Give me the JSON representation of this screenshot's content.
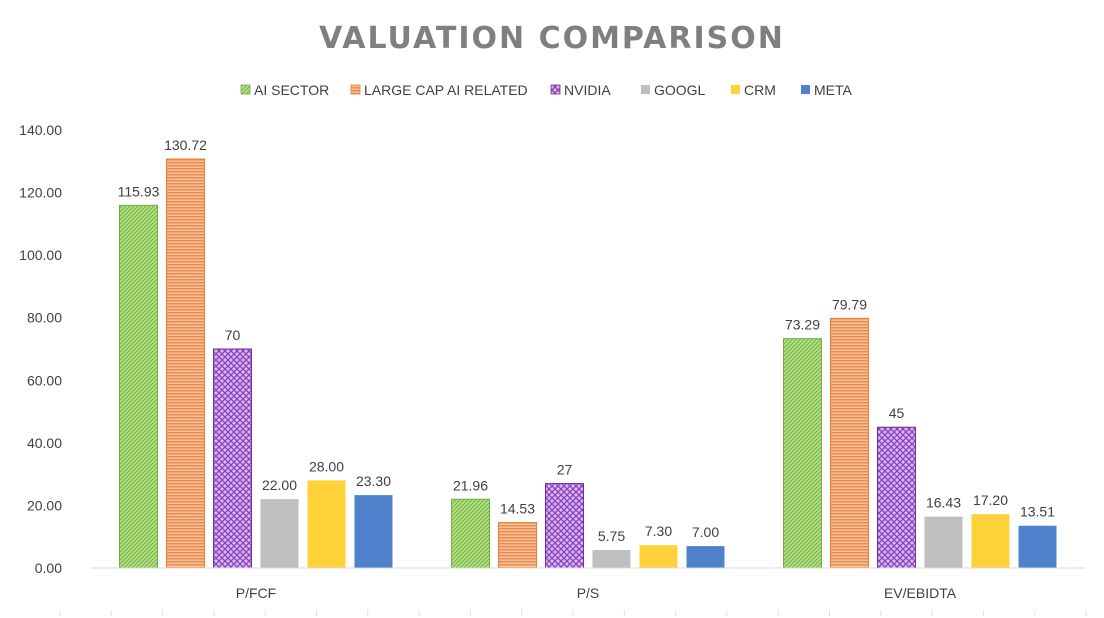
{
  "chart_data": {
    "type": "bar",
    "title": "VALUATION COMPARISON",
    "categories": [
      "P/FCF",
      "P/S",
      "EV/EBIDTA"
    ],
    "series": [
      {
        "name": "AI SECTOR",
        "color": "#92d050",
        "values": [
          115.93,
          21.96,
          73.29
        ],
        "labels": [
          "115.93",
          "21.96",
          "73.29"
        ],
        "pattern": "hatch-green"
      },
      {
        "name": "LARGE CAP AI RELATED",
        "color": "#f4a070",
        "values": [
          130.72,
          14.53,
          79.79
        ],
        "labels": [
          "130.72",
          "14.53",
          "79.79"
        ],
        "pattern": "hlines-orange"
      },
      {
        "name": "NVIDIA",
        "color": "#9b59c8",
        "values": [
          70,
          27,
          45
        ],
        "labels": [
          "70",
          "27",
          "45"
        ],
        "pattern": "cross-purple"
      },
      {
        "name": "GOOGL",
        "color": "#bfbfbf",
        "values": [
          22.0,
          5.75,
          16.43
        ],
        "labels": [
          "22.00",
          "5.75",
          "16.43"
        ],
        "pattern": "solid-gray"
      },
      {
        "name": "CRM",
        "color": "#ffd23a",
        "values": [
          28.0,
          7.3,
          17.2
        ],
        "labels": [
          "28.00",
          "7.30",
          "17.20"
        ],
        "pattern": "solid-yellow"
      },
      {
        "name": "META",
        "color": "#4f81cd",
        "values": [
          23.3,
          7.0,
          13.51
        ],
        "labels": [
          "23.30",
          "7.00",
          "13.51"
        ],
        "pattern": "solid-blue"
      }
    ],
    "ylim": [
      0,
      140
    ],
    "yticks": [
      "0.00",
      "20.00",
      "40.00",
      "60.00",
      "80.00",
      "100.00",
      "120.00",
      "140.00"
    ],
    "ytick_values": [
      0,
      20,
      40,
      60,
      80,
      100,
      120,
      140
    ],
    "grid": false,
    "legend_position": "top"
  }
}
